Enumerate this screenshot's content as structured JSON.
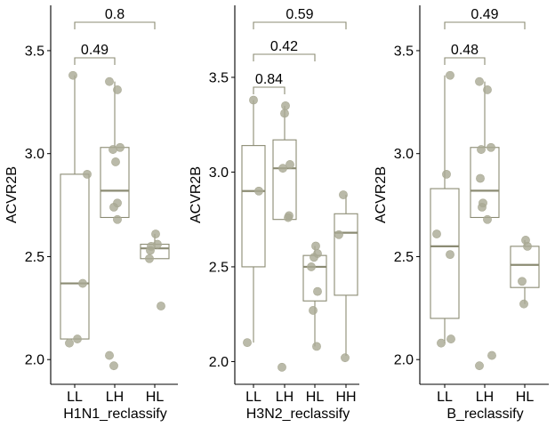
{
  "figure": {
    "colors": {
      "box": "#8b8b73",
      "point": "#a9a994",
      "bracket": "#8b8b73",
      "axis": "#000000"
    }
  },
  "chart_data": [
    {
      "type": "box",
      "xlabel": "H1N1_reclassify",
      "ylabel": "ACVR2B",
      "ylim": [
        1.88,
        3.72
      ],
      "yticks": [
        "2.0",
        "2.5",
        "3.0",
        "3.5"
      ],
      "categories": [
        "LL",
        "LH",
        "HL"
      ],
      "boxes": [
        {
          "min": 2.1,
          "q1": 2.1,
          "median": 2.37,
          "q3": 2.9,
          "max": 3.38
        },
        {
          "min": 2.69,
          "q1": 2.69,
          "median": 2.82,
          "q3": 3.03,
          "max": 3.35
        },
        {
          "min": 2.49,
          "q1": 2.49,
          "median": 2.54,
          "q3": 2.56,
          "max": 2.61
        }
      ],
      "points": [
        [
          3.38,
          2.9,
          2.37,
          2.1,
          2.08
        ],
        [
          3.35,
          3.31,
          3.03,
          3.02,
          2.96,
          2.76,
          2.74,
          2.68,
          2.02,
          1.97
        ],
        [
          2.61,
          2.56,
          2.55,
          2.53,
          2.49,
          2.26
        ]
      ],
      "comparisons": [
        {
          "from": 0,
          "to": 1,
          "label": "0.49"
        },
        {
          "from": 0,
          "to": 2,
          "label": "0.8"
        }
      ]
    },
    {
      "type": "box",
      "xlabel": "H3N2_reclassify",
      "ylabel": "ACVR2B",
      "ylim": [
        1.88,
        3.88
      ],
      "yticks": [
        "2.0",
        "2.5",
        "3.0",
        "3.5"
      ],
      "categories": [
        "LL",
        "LH",
        "HL",
        "HH"
      ],
      "boxes": [
        {
          "min": 2.1,
          "q1": 2.5,
          "median": 2.9,
          "q3": 3.14,
          "max": 3.38
        },
        {
          "min": 2.75,
          "q1": 2.75,
          "median": 3.02,
          "q3": 3.17,
          "max": 3.35
        },
        {
          "min": 2.08,
          "q1": 2.32,
          "median": 2.5,
          "q3": 2.56,
          "max": 2.61
        },
        {
          "min": 2.03,
          "q1": 2.35,
          "median": 2.68,
          "q3": 2.78,
          "max": 2.88
        }
      ],
      "points": [
        [
          3.38,
          2.9,
          2.1
        ],
        [
          3.35,
          3.31,
          3.04,
          3.02,
          2.77,
          2.76,
          1.97
        ],
        [
          2.61,
          2.57,
          2.55,
          2.5,
          2.37,
          2.27,
          2.08
        ],
        [
          2.88,
          2.67,
          2.02
        ]
      ],
      "comparisons": [
        {
          "from": 0,
          "to": 1,
          "label": "0.84"
        },
        {
          "from": 0,
          "to": 2,
          "label": "0.42"
        },
        {
          "from": 0,
          "to": 3,
          "label": "0.59"
        }
      ]
    },
    {
      "type": "box",
      "xlabel": "B_reclassify",
      "ylabel": "ACVR2B",
      "ylim": [
        1.88,
        3.72
      ],
      "yticks": [
        "2.0",
        "2.5",
        "3.0",
        "3.5"
      ],
      "categories": [
        "LL",
        "LH",
        "HL"
      ],
      "boxes": [
        {
          "min": 2.08,
          "q1": 2.2,
          "median": 2.55,
          "q3": 2.83,
          "max": 3.38
        },
        {
          "min": 2.69,
          "q1": 2.69,
          "median": 2.82,
          "q3": 3.03,
          "max": 3.35
        },
        {
          "min": 2.27,
          "q1": 2.35,
          "median": 2.46,
          "q3": 2.55,
          "max": 2.58
        }
      ],
      "points": [
        [
          3.38,
          2.9,
          2.61,
          2.51,
          2.1,
          2.08
        ],
        [
          3.35,
          3.31,
          3.03,
          3.02,
          2.88,
          2.76,
          2.74,
          2.68,
          2.02,
          1.97
        ],
        [
          2.58,
          2.55,
          2.38,
          2.27
        ]
      ],
      "comparisons": [
        {
          "from": 0,
          "to": 1,
          "label": "0.48"
        },
        {
          "from": 0,
          "to": 2,
          "label": "0.49"
        }
      ]
    }
  ]
}
